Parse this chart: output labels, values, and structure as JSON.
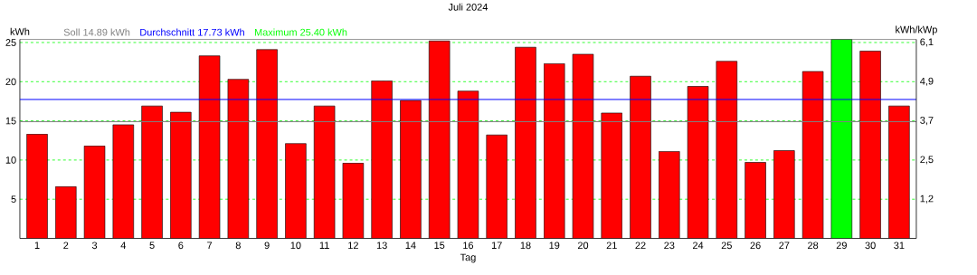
{
  "chart_data": {
    "type": "bar",
    "title": "Juli 2024",
    "xlabel": "Tag",
    "ylabel": "kWh",
    "y2label": "kWh/kWp",
    "categories": [
      "1",
      "2",
      "3",
      "4",
      "5",
      "6",
      "7",
      "8",
      "9",
      "10",
      "11",
      "12",
      "13",
      "14",
      "15",
      "16",
      "17",
      "18",
      "19",
      "20",
      "21",
      "22",
      "23",
      "24",
      "25",
      "26",
      "27",
      "28",
      "29",
      "30",
      "31"
    ],
    "values": [
      13.3,
      6.6,
      11.8,
      14.5,
      16.9,
      16.1,
      23.3,
      20.3,
      24.1,
      12.1,
      16.9,
      9.6,
      20.1,
      17.6,
      25.2,
      18.8,
      13.2,
      24.4,
      22.3,
      23.5,
      16.0,
      20.7,
      11.1,
      19.4,
      22.6,
      9.7,
      11.2,
      21.3,
      25.4,
      23.9,
      16.9
    ],
    "colors": [
      "#ff0000",
      "#ff0000",
      "#ff0000",
      "#ff0000",
      "#ff0000",
      "#ff0000",
      "#ff0000",
      "#ff0000",
      "#ff0000",
      "#ff0000",
      "#ff0000",
      "#ff0000",
      "#ff0000",
      "#ff0000",
      "#ff0000",
      "#ff0000",
      "#ff0000",
      "#ff0000",
      "#ff0000",
      "#ff0000",
      "#ff0000",
      "#ff0000",
      "#ff0000",
      "#ff0000",
      "#ff0000",
      "#ff0000",
      "#ff0000",
      "#ff0000",
      "#00ff00",
      "#ff0000",
      "#ff0000"
    ],
    "ylim": [
      0,
      25.4
    ],
    "yticks": [
      5,
      10,
      15,
      20,
      25
    ],
    "y2lim": [
      0,
      6.2357
    ],
    "y2ticks": [
      {
        "value": 1.2275,
        "label": "1,2"
      },
      {
        "value": 2.455,
        "label": "2,5"
      },
      {
        "value": 3.6825,
        "label": "3,7"
      },
      {
        "value": 4.91,
        "label": "4,9"
      },
      {
        "value": 6.1375,
        "label": "6,1"
      }
    ],
    "ref_lines": [
      {
        "axis": "y",
        "value": 14.89,
        "label": "Soll 14.89 kWh",
        "color": "#808080"
      },
      {
        "axis": "y",
        "value": 17.73,
        "label": "Durchschnitt 17.73 kWh",
        "color": "#0000ff"
      }
    ],
    "annotations": [
      "Maximum 25.40 kWh"
    ],
    "grid": "y"
  }
}
